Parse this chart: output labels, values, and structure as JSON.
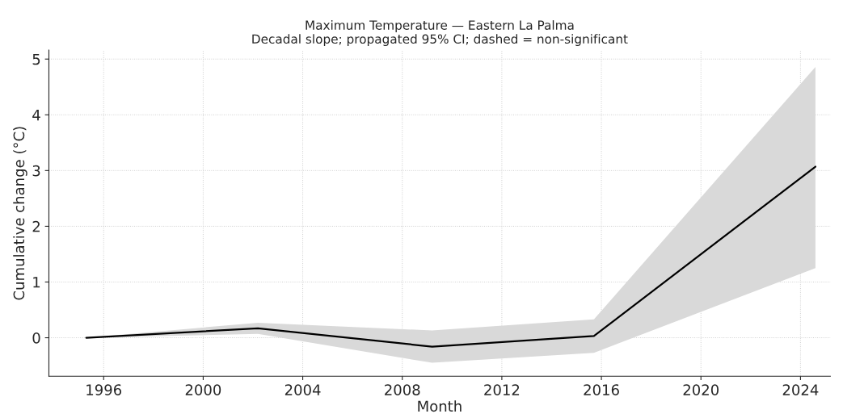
{
  "chart_data": {
    "type": "line",
    "title": "Maximum Temperature — Eastern La Palma\nDecadal slope; propagated 95% CI; dashed = non-significant",
    "xlabel": "Month",
    "ylabel": "Cumulative change (°C)",
    "x": [
      1995.3,
      2002.2,
      2009.2,
      2015.7,
      2024.6
    ],
    "series": [
      {
        "color": "#000000",
        "values": [
          0,
          0.17,
          -0.16,
          0.03,
          3.07
        ],
        "lower": [
          0,
          0.07,
          -0.45,
          -0.27,
          1.25
        ],
        "upper": [
          0,
          0.27,
          0.13,
          0.33,
          4.86
        ]
      }
    ],
    "xlim": [
      1993.8,
      2025.2
    ],
    "xticks": [
      1996,
      2000,
      2004,
      2008,
      2012,
      2016,
      2020,
      2024
    ],
    "ylim": [
      -0.69,
      5.16
    ],
    "yticks": [
      0,
      1,
      2,
      3,
      4,
      5
    ],
    "grid": true,
    "line_style": "solid",
    "marker": "none"
  }
}
